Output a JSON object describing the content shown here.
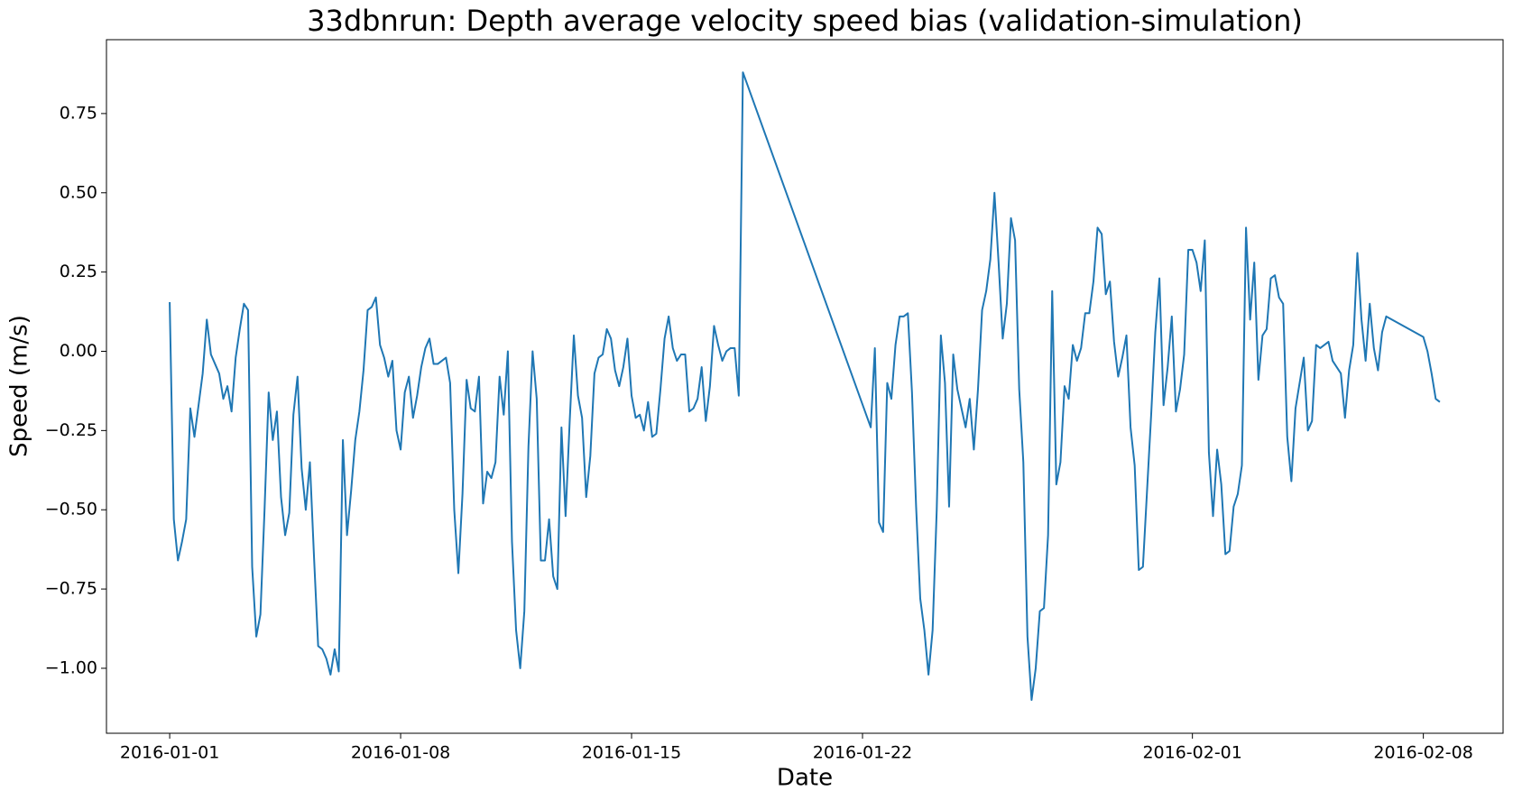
{
  "chart_data": {
    "type": "line",
    "title": "33dbnrun: Depth average velocity speed bias (validation-simulation)",
    "x_label": "Date",
    "y_label": "Speed (m/s)",
    "x": [
      "2016-01-01 00:00",
      "2016-01-01 03:00",
      "2016-01-01 06:00",
      "2016-01-01 09:00",
      "2016-01-01 12:00",
      "2016-01-01 15:00",
      "2016-01-01 18:00",
      "2016-01-01 21:00",
      "2016-01-02 00:00",
      "2016-01-02 03:00",
      "2016-01-02 06:00",
      "2016-01-02 09:00",
      "2016-01-02 12:00",
      "2016-01-02 15:00",
      "2016-01-02 18:00",
      "2016-01-02 21:00",
      "2016-01-03 00:00",
      "2016-01-03 03:00",
      "2016-01-03 06:00",
      "2016-01-03 09:00",
      "2016-01-03 12:00",
      "2016-01-03 15:00",
      "2016-01-03 18:00",
      "2016-01-03 21:00",
      "2016-01-04 00:00",
      "2016-01-04 03:00",
      "2016-01-04 06:00",
      "2016-01-04 09:00",
      "2016-01-04 12:00",
      "2016-01-04 15:00",
      "2016-01-04 18:00",
      "2016-01-04 21:00",
      "2016-01-05 00:00",
      "2016-01-05 03:00",
      "2016-01-05 06:00",
      "2016-01-05 09:00",
      "2016-01-05 12:00",
      "2016-01-05 15:00",
      "2016-01-05 18:00",
      "2016-01-05 21:00",
      "2016-01-06 00:00",
      "2016-01-06 03:00",
      "2016-01-06 06:00",
      "2016-01-06 09:00",
      "2016-01-06 12:00",
      "2016-01-06 15:00",
      "2016-01-06 18:00",
      "2016-01-06 21:00",
      "2016-01-07 00:00",
      "2016-01-07 03:00",
      "2016-01-07 06:00",
      "2016-01-07 09:00",
      "2016-01-07 12:00",
      "2016-01-07 15:00",
      "2016-01-07 18:00",
      "2016-01-07 21:00",
      "2016-01-08 00:00",
      "2016-01-08 03:00",
      "2016-01-08 06:00",
      "2016-01-08 09:00",
      "2016-01-08 12:00",
      "2016-01-08 15:00",
      "2016-01-08 18:00",
      "2016-01-08 21:00",
      "2016-01-09 00:00",
      "2016-01-09 03:00",
      "2016-01-09 06:00",
      "2016-01-09 09:00",
      "2016-01-09 12:00",
      "2016-01-09 15:00",
      "2016-01-09 18:00",
      "2016-01-09 21:00",
      "2016-01-10 00:00",
      "2016-01-10 03:00",
      "2016-01-10 06:00",
      "2016-01-10 09:00",
      "2016-01-10 12:00",
      "2016-01-10 15:00",
      "2016-01-10 18:00",
      "2016-01-10 21:00",
      "2016-01-11 00:00",
      "2016-01-11 03:00",
      "2016-01-11 06:00",
      "2016-01-11 09:00",
      "2016-01-11 12:00",
      "2016-01-11 15:00",
      "2016-01-11 18:00",
      "2016-01-11 21:00",
      "2016-01-12 00:00",
      "2016-01-12 03:00",
      "2016-01-12 06:00",
      "2016-01-12 09:00",
      "2016-01-12 12:00",
      "2016-01-12 15:00",
      "2016-01-12 18:00",
      "2016-01-12 21:00",
      "2016-01-13 00:00",
      "2016-01-13 03:00",
      "2016-01-13 06:00",
      "2016-01-13 09:00",
      "2016-01-13 12:00",
      "2016-01-13 15:00",
      "2016-01-13 18:00",
      "2016-01-13 21:00",
      "2016-01-14 00:00",
      "2016-01-14 03:00",
      "2016-01-14 06:00",
      "2016-01-14 09:00",
      "2016-01-14 12:00",
      "2016-01-14 15:00",
      "2016-01-14 18:00",
      "2016-01-14 21:00",
      "2016-01-15 00:00",
      "2016-01-15 03:00",
      "2016-01-15 06:00",
      "2016-01-15 09:00",
      "2016-01-15 12:00",
      "2016-01-15 15:00",
      "2016-01-15 18:00",
      "2016-01-15 21:00",
      "2016-01-16 00:00",
      "2016-01-16 03:00",
      "2016-01-16 06:00",
      "2016-01-16 09:00",
      "2016-01-16 12:00",
      "2016-01-16 15:00",
      "2016-01-16 18:00",
      "2016-01-16 21:00",
      "2016-01-17 00:00",
      "2016-01-17 03:00",
      "2016-01-17 06:00",
      "2016-01-17 09:00",
      "2016-01-17 12:00",
      "2016-01-17 15:00",
      "2016-01-17 18:00",
      "2016-01-17 21:00",
      "2016-01-18 00:00",
      "2016-01-18 03:00",
      "2016-01-18 06:00",
      "2016-01-18 09:00",
      "2016-01-22 06:00",
      "2016-01-22 09:00",
      "2016-01-22 12:00",
      "2016-01-22 15:00",
      "2016-01-22 18:00",
      "2016-01-22 21:00",
      "2016-01-23 00:00",
      "2016-01-23 03:00",
      "2016-01-23 06:00",
      "2016-01-23 09:00",
      "2016-01-23 12:00",
      "2016-01-23 15:00",
      "2016-01-23 18:00",
      "2016-01-23 21:00",
      "2016-01-24 00:00",
      "2016-01-24 03:00",
      "2016-01-24 06:00",
      "2016-01-24 09:00",
      "2016-01-24 12:00",
      "2016-01-24 15:00",
      "2016-01-24 18:00",
      "2016-01-24 21:00",
      "2016-01-25 00:00",
      "2016-01-25 03:00",
      "2016-01-25 06:00",
      "2016-01-25 09:00",
      "2016-01-25 12:00",
      "2016-01-25 15:00",
      "2016-01-25 18:00",
      "2016-01-25 21:00",
      "2016-01-26 00:00",
      "2016-01-26 03:00",
      "2016-01-26 06:00",
      "2016-01-26 09:00",
      "2016-01-26 12:00",
      "2016-01-26 15:00",
      "2016-01-26 18:00",
      "2016-01-26 21:00",
      "2016-01-27 00:00",
      "2016-01-27 03:00",
      "2016-01-27 06:00",
      "2016-01-27 09:00",
      "2016-01-27 12:00",
      "2016-01-27 15:00",
      "2016-01-27 18:00",
      "2016-01-27 21:00",
      "2016-01-28 00:00",
      "2016-01-28 03:00",
      "2016-01-28 06:00",
      "2016-01-28 09:00",
      "2016-01-28 12:00",
      "2016-01-28 15:00",
      "2016-01-28 18:00",
      "2016-01-28 21:00",
      "2016-01-29 00:00",
      "2016-01-29 03:00",
      "2016-01-29 06:00",
      "2016-01-29 09:00",
      "2016-01-29 12:00",
      "2016-01-29 15:00",
      "2016-01-29 18:00",
      "2016-01-29 21:00",
      "2016-01-30 00:00",
      "2016-01-30 03:00",
      "2016-01-30 06:00",
      "2016-01-30 09:00",
      "2016-01-30 12:00",
      "2016-01-30 15:00",
      "2016-01-30 18:00",
      "2016-01-30 21:00",
      "2016-01-31 00:00",
      "2016-01-31 03:00",
      "2016-01-31 06:00",
      "2016-01-31 09:00",
      "2016-01-31 12:00",
      "2016-01-31 15:00",
      "2016-01-31 18:00",
      "2016-01-31 21:00",
      "2016-02-01 00:00",
      "2016-02-01 03:00",
      "2016-02-01 06:00",
      "2016-02-01 09:00",
      "2016-02-01 12:00",
      "2016-02-01 15:00",
      "2016-02-01 18:00",
      "2016-02-01 21:00",
      "2016-02-02 00:00",
      "2016-02-02 03:00",
      "2016-02-02 06:00",
      "2016-02-02 09:00",
      "2016-02-02 12:00",
      "2016-02-02 15:00",
      "2016-02-02 18:00",
      "2016-02-02 21:00",
      "2016-02-03 00:00",
      "2016-02-03 03:00",
      "2016-02-03 06:00",
      "2016-02-03 09:00",
      "2016-02-03 12:00",
      "2016-02-03 15:00",
      "2016-02-03 18:00",
      "2016-02-03 21:00",
      "2016-02-04 00:00",
      "2016-02-04 03:00",
      "2016-02-04 06:00",
      "2016-02-04 09:00",
      "2016-02-04 12:00",
      "2016-02-04 15:00",
      "2016-02-04 18:00",
      "2016-02-04 21:00",
      "2016-02-05 00:00",
      "2016-02-05 03:00",
      "2016-02-05 06:00",
      "2016-02-05 09:00",
      "2016-02-05 12:00",
      "2016-02-05 15:00",
      "2016-02-05 18:00",
      "2016-02-05 21:00",
      "2016-02-06 00:00",
      "2016-02-06 03:00",
      "2016-02-06 06:00",
      "2016-02-06 09:00",
      "2016-02-06 12:00",
      "2016-02-06 15:00",
      "2016-02-06 18:00",
      "2016-02-06 21:00",
      "2016-02-08 00:00",
      "2016-02-08 03:00",
      "2016-02-08 06:00",
      "2016-02-08 09:00",
      "2016-02-08 12:00"
    ],
    "series": [
      {
        "color": "#1f77b4",
        "values": [
          0.155,
          -0.53,
          -0.66,
          -0.6,
          -0.53,
          -0.18,
          -0.27,
          -0.17,
          -0.07,
          0.1,
          -0.01,
          -0.04,
          -0.07,
          -0.15,
          -0.11,
          -0.19,
          -0.02,
          0.07,
          0.15,
          0.13,
          -0.68,
          -0.9,
          -0.83,
          -0.5,
          -0.13,
          -0.28,
          -0.19,
          -0.46,
          -0.58,
          -0.51,
          -0.2,
          -0.08,
          -0.37,
          -0.5,
          -0.35,
          -0.65,
          -0.93,
          -0.94,
          -0.97,
          -1.02,
          -0.94,
          -1.01,
          -0.28,
          -0.58,
          -0.44,
          -0.28,
          -0.19,
          -0.06,
          0.13,
          0.14,
          0.17,
          0.02,
          -0.02,
          -0.08,
          -0.03,
          -0.25,
          -0.31,
          -0.13,
          -0.08,
          -0.21,
          -0.14,
          -0.05,
          0.01,
          0.04,
          -0.04,
          -0.04,
          -0.03,
          -0.02,
          -0.1,
          -0.5,
          -0.7,
          -0.45,
          -0.09,
          -0.18,
          -0.19,
          -0.08,
          -0.48,
          -0.38,
          -0.4,
          -0.35,
          -0.08,
          -0.2,
          0.0,
          -0.6,
          -0.88,
          -1.0,
          -0.82,
          -0.3,
          0.0,
          -0.15,
          -0.66,
          -0.66,
          -0.53,
          -0.71,
          -0.75,
          -0.24,
          -0.52,
          -0.22,
          0.05,
          -0.14,
          -0.21,
          -0.46,
          -0.33,
          -0.07,
          -0.02,
          -0.01,
          0.07,
          0.04,
          -0.06,
          -0.11,
          -0.05,
          0.04,
          -0.14,
          -0.21,
          -0.2,
          -0.25,
          -0.16,
          -0.27,
          -0.26,
          -0.12,
          0.04,
          0.11,
          0.01,
          -0.03,
          -0.01,
          -0.01,
          -0.19,
          -0.18,
          -0.15,
          -0.05,
          -0.22,
          -0.11,
          0.08,
          0.02,
          -0.03,
          0.0,
          0.01,
          0.01,
          -0.14,
          0.88,
          -0.24,
          0.01,
          -0.54,
          -0.57,
          -0.1,
          -0.15,
          0.02,
          0.11,
          0.11,
          0.12,
          -0.13,
          -0.49,
          -0.78,
          -0.88,
          -1.02,
          -0.88,
          -0.5,
          0.05,
          -0.1,
          -0.49,
          -0.01,
          -0.12,
          -0.18,
          -0.24,
          -0.15,
          -0.31,
          -0.12,
          0.13,
          0.19,
          0.29,
          0.5,
          0.28,
          0.04,
          0.15,
          0.42,
          0.35,
          -0.12,
          -0.35,
          -0.9,
          -1.1,
          -1.0,
          -0.82,
          -0.81,
          -0.58,
          0.19,
          -0.42,
          -0.35,
          -0.11,
          -0.15,
          0.02,
          -0.03,
          0.01,
          0.12,
          0.12,
          0.22,
          0.39,
          0.37,
          0.18,
          0.22,
          0.03,
          -0.08,
          -0.02,
          0.05,
          -0.24,
          -0.36,
          -0.69,
          -0.68,
          -0.44,
          -0.2,
          0.06,
          0.23,
          -0.17,
          -0.05,
          0.11,
          -0.19,
          -0.12,
          -0.01,
          0.32,
          0.32,
          0.28,
          0.19,
          0.35,
          -0.32,
          -0.52,
          -0.31,
          -0.42,
          -0.64,
          -0.63,
          -0.49,
          -0.45,
          -0.36,
          0.39,
          0.1,
          0.28,
          -0.09,
          0.05,
          0.07,
          0.23,
          0.24,
          0.17,
          0.15,
          -0.27,
          -0.41,
          -0.18,
          -0.1,
          -0.02,
          -0.25,
          -0.22,
          0.02,
          0.01,
          0.02,
          0.03,
          -0.03,
          -0.05,
          -0.07,
          -0.21,
          -0.06,
          0.02,
          0.31,
          0.1,
          -0.03,
          0.15,
          0.01,
          -0.06,
          0.06,
          0.11,
          0.045,
          0.0,
          -0.07,
          -0.15,
          -0.16
        ]
      }
    ],
    "xlim": [
      "2015-12-30 02:00",
      "2016-02-10 10:00"
    ],
    "xticks": [
      "2016-01-01",
      "2016-01-08",
      "2016-01-15",
      "2016-01-22",
      "2016-02-01",
      "2016-02-08"
    ],
    "ylim": [
      -1.205,
      0.983
    ],
    "yticks": [
      {
        "value": -1,
        "label": "−1.00"
      },
      {
        "value": -0.75,
        "label": "−0.75"
      },
      {
        "value": -0.5,
        "label": "−0.50"
      },
      {
        "value": -0.25,
        "label": "−0.25"
      },
      {
        "value": 0,
        "label": "0.00"
      },
      {
        "value": 0.25,
        "label": "0.25"
      },
      {
        "value": 0.5,
        "label": "0.50"
      },
      {
        "value": 0.75,
        "label": "0.75"
      }
    ],
    "grid": false
  }
}
